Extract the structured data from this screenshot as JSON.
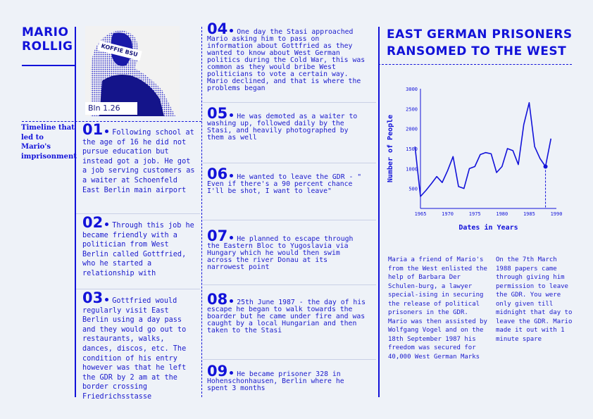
{
  "title": "MARIO ROLLIG",
  "photo": {
    "label_top": "KOFFIE BSU",
    "label_bottom": "Bln 1.26"
  },
  "timeline_label": "Timeline that led to Mario's imprisonment",
  "events": [
    {
      "num": "01",
      "text": "Following school at the age of 16 he did not pursue education but instead got a job. He got a job serving customers as a waiter at Schoenfeld East Berlin main airport"
    },
    {
      "num": "02",
      "text": "Through this job he became friendly with a politician from West Berlin called Gottfried, who he started a relationship with"
    },
    {
      "num": "03",
      "text": "Gottfried would regularly visit East Berlin using a day pass and they would go out to restaurants, walks, dances, discos, etc. The condition of his entry however was that he left the GDR by 2 am at the border crossing Friedrichsstasse"
    },
    {
      "num": "04",
      "text": "One day the Stasi approached Mario asking him to pass on information about Gottfried as they wanted to know about West German politics during the Cold War, this was common as they would bribe West politicians to vote a certain way. Mario declined, and that is where the problems began"
    },
    {
      "num": "05",
      "text": "He was demoted as a waiter to washing up, followed daily by the Stasi, and heavily photographed by them as well"
    },
    {
      "num": "06",
      "text": "He wanted to leave the GDR - \" Even if there's a 90 percent chance I'll be shot, I want to leave\""
    },
    {
      "num": "07",
      "text": "He planned to escape through the Eastern Bloc to Yugoslavia via Hungary which he would then swim across the river Donau at its narrowest point"
    },
    {
      "num": "08",
      "text": "25th June 1987 - the day of his escape he began to walk towards the boarder but he came under fire and was caught by a local Hungarian and then taken to the Stasi"
    },
    {
      "num": "09",
      "text": "He became prisoner 328 in Hohenschonhausen, Berlin where he spent 3 months"
    }
  ],
  "right_title": "EAST GERMAN PRISONERS RANSOMED TO THE WEST",
  "chart_data": {
    "type": "line",
    "title": "",
    "xlabel": "Dates in Years",
    "ylabel": "Number of People",
    "xlim": [
      1965,
      1990
    ],
    "ylim": [
      0,
      3000
    ],
    "x_ticks": [
      1965,
      1970,
      1975,
      1980,
      1985,
      1990
    ],
    "y_ticks": [
      500,
      1000,
      1500,
      2000,
      2500,
      3000
    ],
    "series": [
      {
        "x": [
          1964,
          1965,
          1966,
          1967,
          1968,
          1969,
          1970,
          1971,
          1972,
          1973,
          1974,
          1975,
          1976,
          1977,
          1978,
          1979,
          1980,
          1981,
          1982,
          1983,
          1984,
          1985,
          1986,
          1987,
          1988,
          1989
        ],
        "values": [
          1550,
          300,
          450,
          620,
          800,
          650,
          950,
          1300,
          550,
          500,
          1000,
          1050,
          1350,
          1400,
          1370,
          900,
          1050,
          1500,
          1450,
          1100,
          2100,
          2650,
          1550,
          1250,
          1050,
          1750
        ]
      }
    ],
    "marker_year": 1988
  },
  "para_left": "Maria a friend of Mario's from the West enlisted the help of Barbara Der Schulen-burg, a lawyer special-ising in securing the release of political prisoners in the GDR. Mario was then assisted by Wolfgang Vogel and on the 18th September 1987 his freedom was secured for 40,000 West German Marks",
  "para_right": "On the 7th March 1988 papers came through giving him permission to leave the GDR. You were only given till midnight that day to leave the GDR. Mario made it out with 1 minute spare"
}
